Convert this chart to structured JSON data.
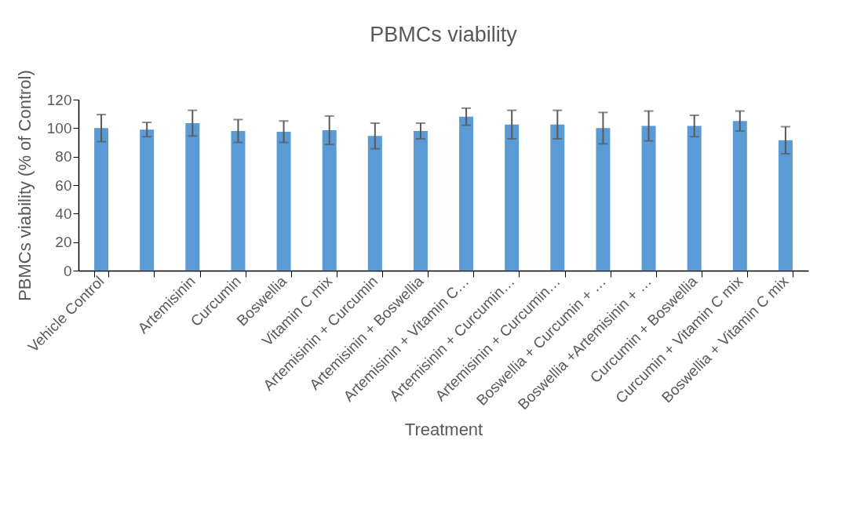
{
  "chart_data": {
    "type": "bar",
    "title": "PBMCs viability",
    "xlabel": "Treatment",
    "ylabel": "PBMCs viability (% of Control)",
    "categories": [
      "Vehicle Control",
      null,
      "Artemisinin",
      "Curcumin",
      "Boswellia",
      "Vitamin C mix",
      "Artemisinin + Curcumin",
      "Artemisinin + Boswellia",
      "Artemisinin + Vitamin C…",
      "Artemisinin + Curcumin…",
      "Artemisinin + Curcumin…",
      "Boswellia + Curcumin + …",
      "Boswellia +Artemisinin + …",
      "Curcumin + Boswellia",
      "Curcumin + Vitamin C mix",
      "Boswellia + Vitamin C mix"
    ],
    "values": [
      100,
      99,
      103.5,
      98,
      97.5,
      98.5,
      94.5,
      98,
      108,
      102.5,
      102.5,
      100,
      101.5,
      101.5,
      105,
      91.5
    ],
    "errors": [
      9.5,
      5,
      9,
      8,
      7.5,
      10,
      9,
      5.5,
      6,
      10,
      10,
      11,
      10.5,
      7.5,
      7,
      9.5
    ],
    "color": "#5b9bd5",
    "ylim": [
      0,
      120
    ],
    "yticks": [
      0,
      20,
      40,
      60,
      80,
      100,
      120
    ]
  }
}
